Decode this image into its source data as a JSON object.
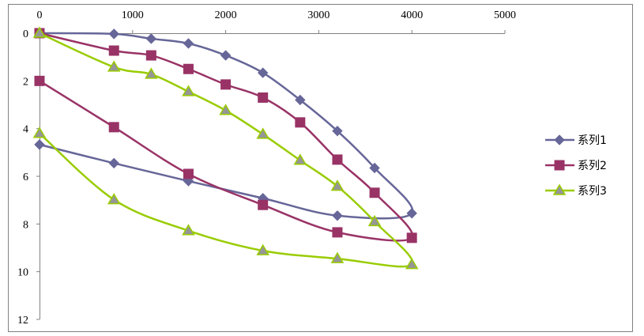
{
  "chart_data": {
    "type": "line",
    "subtype": "scatter-smooth-lines-with-markers",
    "title": "",
    "xlabel": "",
    "ylabel": "",
    "xlim": [
      0,
      5000
    ],
    "ylim": [
      0,
      12
    ],
    "y_reversed": true,
    "x_axis_position": "top",
    "x_ticks": [
      "0",
      "1000",
      "2000",
      "3000",
      "4000",
      "5000"
    ],
    "y_ticks": [
      "0",
      "2",
      "4",
      "6",
      "8",
      "10",
      "12"
    ],
    "grid": false,
    "legend": "right",
    "series": [
      {
        "name": "系列1",
        "color": "#666699",
        "marker": "diamond",
        "x": [
          0,
          800,
          1200,
          1600,
          2000,
          2400,
          2800,
          3200,
          3600,
          4000,
          3200,
          2400,
          1600,
          800,
          0
        ],
        "y": [
          0,
          0.03,
          0.23,
          0.43,
          0.93,
          1.66,
          2.8,
          4.1,
          5.65,
          7.55,
          7.65,
          6.92,
          6.2,
          5.45,
          4.67
        ]
      },
      {
        "name": "系列2",
        "color": "#993366",
        "marker": "square",
        "x": [
          0,
          800,
          1200,
          1600,
          2000,
          2400,
          2800,
          3200,
          3600,
          4000,
          3200,
          2400,
          1600,
          800,
          0
        ],
        "y": [
          0,
          0.73,
          0.93,
          1.5,
          2.15,
          2.7,
          3.74,
          5.3,
          6.69,
          8.58,
          8.35,
          7.2,
          5.9,
          3.94,
          2.0
        ]
      },
      {
        "name": "系列3",
        "color": "#99CC00",
        "marker": "triangle",
        "marker_fill": "#969696",
        "x": [
          0,
          800,
          1200,
          1600,
          2000,
          2400,
          2800,
          3200,
          3600,
          4000,
          3200,
          2400,
          1600,
          800,
          0
        ],
        "y": [
          0,
          1.42,
          1.72,
          2.45,
          3.24,
          4.24,
          5.33,
          6.42,
          7.9,
          9.7,
          9.45,
          9.12,
          8.28,
          6.98,
          4.2
        ]
      }
    ]
  }
}
